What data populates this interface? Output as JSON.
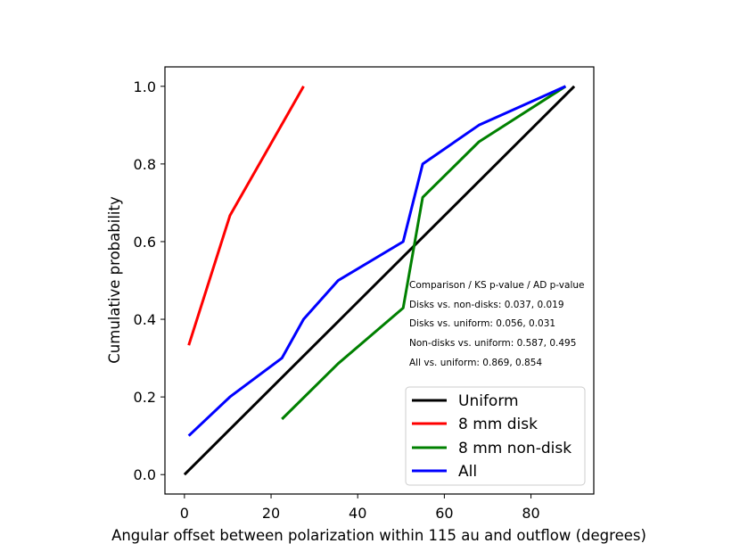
{
  "chart_data": {
    "type": "line",
    "title": "",
    "xlabel": "Angular offset between polarization within 115 au and outflow (degrees)",
    "ylabel": "Cumulative probability",
    "xlim": [
      -4.5,
      94.5
    ],
    "ylim": [
      -0.05,
      1.05
    ],
    "xticks": [
      0,
      20,
      40,
      60,
      80
    ],
    "yticks": [
      0.0,
      0.2,
      0.4,
      0.6,
      0.8,
      1.0
    ],
    "xtick_labels": [
      "0",
      "20",
      "40",
      "60",
      "80"
    ],
    "ytick_labels": [
      "0.0",
      "0.2",
      "0.4",
      "0.6",
      "0.8",
      "1.0"
    ],
    "grid": false,
    "legend_position": "lower-right",
    "series": [
      {
        "name": "Uniform",
        "color": "#000000",
        "x": [
          0,
          90
        ],
        "y": [
          0.0,
          1.0
        ]
      },
      {
        "name": "8 mm disk",
        "color": "#ff0000",
        "x": [
          1,
          10.5,
          27.5
        ],
        "y": [
          0.333,
          0.667,
          1.0
        ]
      },
      {
        "name": "8 mm non-disk",
        "color": "#008000",
        "x": [
          22.5,
          35.5,
          50.5,
          55,
          68,
          88
        ],
        "y": [
          0.143,
          0.286,
          0.429,
          0.714,
          0.857,
          1.0
        ]
      },
      {
        "name": "All",
        "color": "#0000ff",
        "x": [
          1,
          10.5,
          22.5,
          27.5,
          35.5,
          50.5,
          55,
          68,
          88
        ],
        "y": [
          0.1,
          0.2,
          0.3,
          0.4,
          0.5,
          0.6,
          0.8,
          0.9,
          1.0
        ]
      }
    ],
    "annotations": [
      "Comparison / KS p-value / AD p-value",
      "Disks vs. non-disks: 0.037, 0.019",
      "Disks vs. uniform: 0.056, 0.031",
      "Non-disks vs. uniform: 0.587, 0.495",
      "All vs. uniform: 0.869, 0.854"
    ]
  }
}
